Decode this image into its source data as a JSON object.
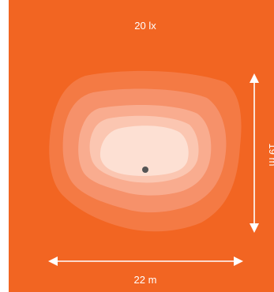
{
  "illuminance_label": "20 lx",
  "width_label": "22 m",
  "height_label": "19 m",
  "colors": {
    "background": "#f26522",
    "zone_1": "#f47a44",
    "zone_2": "#f6916a",
    "zone_3": "#f9ac8f",
    "zone_4": "#fbc6b1",
    "zone_5": "#fde0d3",
    "source_point": "#555555",
    "arrow": "#ffffff",
    "text": "#ffffff"
  },
  "icons": {
    "light_source": "dot-icon",
    "arrow_heads": "arrow-head-icon"
  }
}
